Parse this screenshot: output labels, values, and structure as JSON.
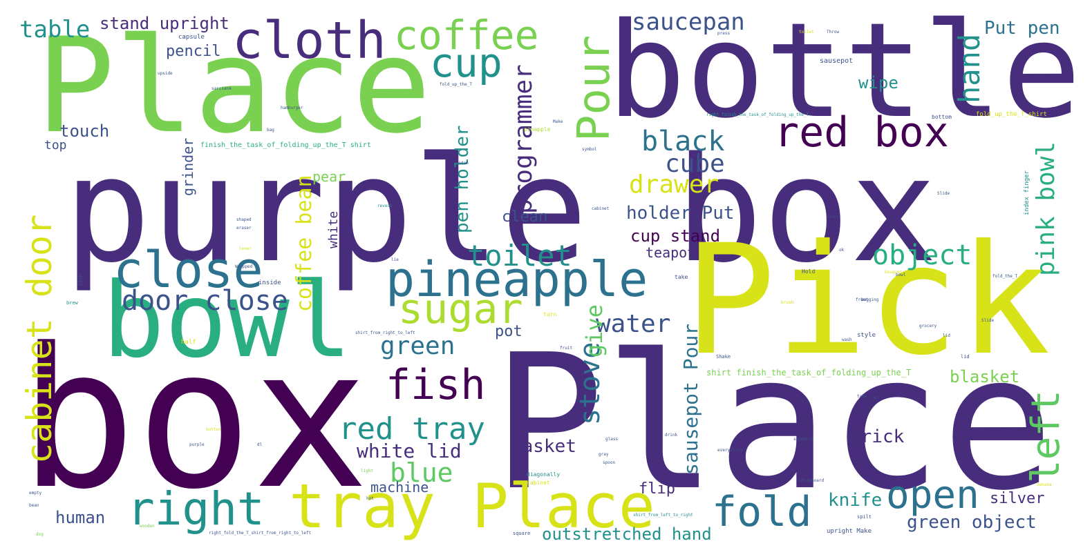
{
  "palette": {
    "dark_purple": "#440154",
    "indigo": "#472d7b",
    "slate_blue": "#3b528b",
    "teal_blue": "#2c728e",
    "teal": "#21918c",
    "sea_green": "#28ae80",
    "green": "#5ec962",
    "lime": "#addc30",
    "yellow": "#d8e219"
  },
  "words": [
    "purple box",
    "box",
    "Place",
    "Place",
    "bottle",
    "Pick",
    "bowl",
    "cloth",
    "coffee",
    "cup",
    "Pour",
    "red box",
    "tray Place",
    "pineapple",
    "close",
    "sugar",
    "open",
    "fold",
    "right",
    "cabinet door",
    "fish",
    "left",
    "red tray",
    "saucepan",
    "black",
    "drawer",
    "cube",
    "toilet",
    "object",
    "door close",
    "water",
    "green",
    "hand",
    "pink bowl",
    "programmer",
    "stove",
    "give",
    "blue",
    "table",
    "stand upright",
    "Put pen",
    "coffee bean",
    "sausepot Pour",
    "white lid",
    "pen holder",
    "holder Put",
    "cup stand",
    "basket",
    "green object",
    "knife",
    "human",
    "outstretched hand",
    "brick",
    "blasket",
    "silver",
    "pencil",
    "touch",
    "top",
    "wipe",
    "clean",
    "teapot",
    "pot",
    "machine",
    "flip",
    "grinder",
    "white",
    "pear",
    "finish_the_task_of_folding_up_the_T shirt",
    "shirt finish_the_task_of_folding_up_the_T",
    "sausepot",
    "capsule",
    "fold_up_the_T_shirt",
    "right_finish_the_task_of_folding_up_the_T",
    "index finger",
    "bottom",
    "pinapple",
    "hamburger",
    "random",
    "reveal",
    "eraser",
    "inside",
    "half",
    "brew",
    "back",
    "diagonally",
    "cabinet",
    "purple",
    "wooden",
    "square",
    "spilt",
    "upright Make",
    "glass",
    "gray",
    "spoon",
    "everything",
    "whiteboard",
    "banana",
    "grocery",
    "style",
    "fruit",
    "Shake",
    "turn",
    "take",
    "Hold",
    "front",
    "lid",
    "dog",
    "bean",
    "empty",
    "light",
    "hot",
    "button",
    "lie",
    "sandwich",
    "fold_the_T",
    "right_fold_the_T_shirt_from_right_to_left",
    "shirt_from_left_to_right",
    "shirt_from_right_to_left",
    "fold_up_the_T",
    "can",
    "bag",
    "take",
    "toilet",
    "Throw",
    "press",
    "upside",
    "sarciank",
    "shaped",
    "Wrapped",
    "lever",
    "shiny",
    "cabinet",
    "symbol",
    "bagging",
    "bowl",
    "Slide",
    "Slide",
    "Make",
    "lid",
    "ok",
    "drink",
    "dl",
    "wash",
    "brush",
    "bouquet"
  ]
}
